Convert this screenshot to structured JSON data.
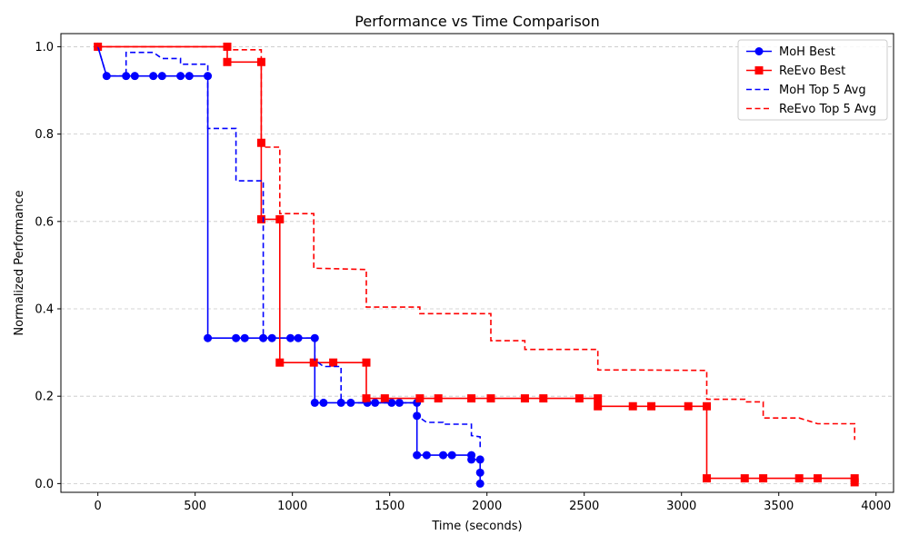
{
  "chart_data": {
    "type": "line",
    "title": "Performance vs Time Comparison",
    "xlabel": "Time (seconds)",
    "ylabel": "Normalized Performance",
    "xlim": [
      -190,
      4090
    ],
    "ylim": [
      -0.02,
      1.03
    ],
    "xticks": [
      0,
      500,
      1000,
      1500,
      2000,
      2500,
      3000,
      3500,
      4000
    ],
    "yticks": [
      0.0,
      0.2,
      0.4,
      0.6,
      0.8,
      1.0
    ],
    "xtick_labels": [
      "0",
      "500",
      "1000",
      "1500",
      "2000",
      "2500",
      "3000",
      "3500",
      "4000"
    ],
    "ytick_labels": [
      "0.0",
      "0.2",
      "0.4",
      "0.6",
      "0.8",
      "1.0"
    ],
    "grid": {
      "y": true,
      "x": false,
      "style": "dashed"
    },
    "legend_position": "top-right",
    "series": [
      {
        "name": "MoH Best",
        "color": "#0000ff",
        "style": "solid",
        "marker": "circle",
        "points": [
          [
            0,
            1.0
          ],
          [
            45,
            0.933
          ],
          [
            145,
            0.933
          ],
          [
            190,
            0.933
          ],
          [
            285,
            0.933
          ],
          [
            330,
            0.933
          ],
          [
            425,
            0.933
          ],
          [
            470,
            0.933
          ],
          [
            565,
            0.933
          ],
          [
            565,
            0.333
          ],
          [
            710,
            0.333
          ],
          [
            755,
            0.333
          ],
          [
            850,
            0.333
          ],
          [
            895,
            0.333
          ],
          [
            990,
            0.333
          ],
          [
            1030,
            0.333
          ],
          [
            1115,
            0.333
          ],
          [
            1115,
            0.185
          ],
          [
            1160,
            0.185
          ],
          [
            1250,
            0.185
          ],
          [
            1300,
            0.185
          ],
          [
            1385,
            0.185
          ],
          [
            1425,
            0.185
          ],
          [
            1510,
            0.185
          ],
          [
            1550,
            0.185
          ],
          [
            1640,
            0.185
          ],
          [
            1640,
            0.155
          ],
          [
            1640,
            0.065
          ],
          [
            1690,
            0.065
          ],
          [
            1775,
            0.065
          ],
          [
            1820,
            0.065
          ],
          [
            1920,
            0.065
          ],
          [
            1920,
            0.055
          ],
          [
            1965,
            0.055
          ],
          [
            1965,
            0.025
          ],
          [
            1965,
            0.0
          ]
        ]
      },
      {
        "name": "ReEvo Best",
        "color": "#ff0000",
        "style": "solid",
        "marker": "square",
        "points": [
          [
            0,
            1.0
          ],
          [
            665,
            1.0
          ],
          [
            665,
            0.965
          ],
          [
            840,
            0.965
          ],
          [
            840,
            0.78
          ],
          [
            840,
            0.605
          ],
          [
            935,
            0.605
          ],
          [
            935,
            0.277
          ],
          [
            1110,
            0.277
          ],
          [
            1210,
            0.277
          ],
          [
            1380,
            0.277
          ],
          [
            1380,
            0.195
          ],
          [
            1475,
            0.195
          ],
          [
            1655,
            0.195
          ],
          [
            1750,
            0.195
          ],
          [
            1920,
            0.195
          ],
          [
            2020,
            0.195
          ],
          [
            2195,
            0.195
          ],
          [
            2290,
            0.195
          ],
          [
            2475,
            0.195
          ],
          [
            2570,
            0.195
          ],
          [
            2570,
            0.177
          ],
          [
            2750,
            0.177
          ],
          [
            2845,
            0.177
          ],
          [
            3035,
            0.177
          ],
          [
            3130,
            0.177
          ],
          [
            3130,
            0.012
          ],
          [
            3325,
            0.012
          ],
          [
            3420,
            0.012
          ],
          [
            3605,
            0.012
          ],
          [
            3700,
            0.012
          ],
          [
            3890,
            0.012
          ],
          [
            3890,
            0.003
          ]
        ]
      },
      {
        "name": "MoH Top 5 Avg",
        "color": "#0000ff",
        "style": "dashed",
        "marker": "none",
        "points": [
          [
            0,
            1.0
          ],
          [
            45,
            0.933
          ],
          [
            145,
            0.933
          ],
          [
            145,
            0.987
          ],
          [
            285,
            0.987
          ],
          [
            330,
            0.973
          ],
          [
            425,
            0.973
          ],
          [
            425,
            0.96
          ],
          [
            565,
            0.96
          ],
          [
            565,
            0.813
          ],
          [
            710,
            0.813
          ],
          [
            710,
            0.693
          ],
          [
            850,
            0.693
          ],
          [
            850,
            0.333
          ],
          [
            1115,
            0.333
          ],
          [
            1115,
            0.283
          ],
          [
            1160,
            0.268
          ],
          [
            1250,
            0.268
          ],
          [
            1250,
            0.185
          ],
          [
            1640,
            0.185
          ],
          [
            1640,
            0.155
          ],
          [
            1690,
            0.14
          ],
          [
            1775,
            0.14
          ],
          [
            1775,
            0.136
          ],
          [
            1920,
            0.136
          ],
          [
            1920,
            0.11
          ],
          [
            1965,
            0.107
          ],
          [
            1965,
            0.08
          ]
        ]
      },
      {
        "name": "ReEvo Top 5 Avg",
        "color": "#ff0000",
        "style": "dashed",
        "marker": "none",
        "points": [
          [
            0,
            1.0
          ],
          [
            665,
            1.0
          ],
          [
            665,
            0.993
          ],
          [
            840,
            0.993
          ],
          [
            840,
            0.77
          ],
          [
            935,
            0.77
          ],
          [
            935,
            0.618
          ],
          [
            1110,
            0.618
          ],
          [
            1110,
            0.493
          ],
          [
            1210,
            0.492
          ],
          [
            1380,
            0.49
          ],
          [
            1380,
            0.404
          ],
          [
            1655,
            0.404
          ],
          [
            1655,
            0.389
          ],
          [
            2020,
            0.389
          ],
          [
            2020,
            0.327
          ],
          [
            2195,
            0.327
          ],
          [
            2195,
            0.307
          ],
          [
            2570,
            0.307
          ],
          [
            2570,
            0.26
          ],
          [
            2750,
            0.26
          ],
          [
            3130,
            0.259
          ],
          [
            3130,
            0.193
          ],
          [
            3325,
            0.193
          ],
          [
            3325,
            0.187
          ],
          [
            3420,
            0.187
          ],
          [
            3420,
            0.15
          ],
          [
            3605,
            0.15
          ],
          [
            3700,
            0.137
          ],
          [
            3890,
            0.137
          ],
          [
            3890,
            0.1
          ]
        ]
      }
    ]
  }
}
